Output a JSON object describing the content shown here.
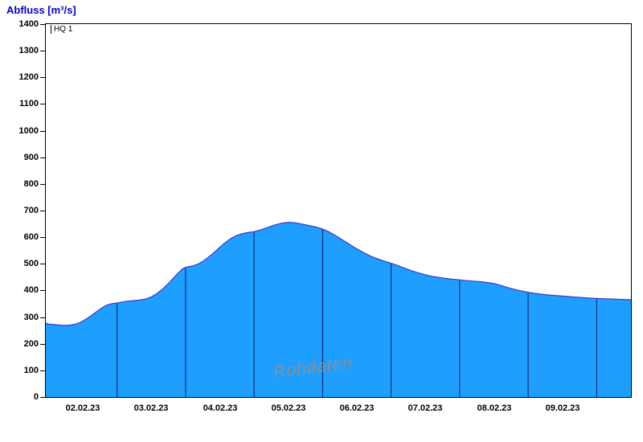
{
  "title": "Abfluss [m³/s]",
  "threshold_label": "HQ 1",
  "watermark": "Rohdaten",
  "colors": {
    "title": "#0000cc",
    "fill": "#1e9eff",
    "outline": "#3a3ad0",
    "boundary": "#0d1a5e",
    "axis": "#000000",
    "watermark": "#8f8f8f"
  },
  "chart_data": {
    "type": "area",
    "title": "Abfluss [m³/s]",
    "ylabel": "Abfluss [m³/s]",
    "xlabel": "",
    "ylim": [
      0,
      1400
    ],
    "ytick_step": 100,
    "y_ticks": [
      0,
      100,
      200,
      300,
      400,
      500,
      600,
      700,
      800,
      900,
      1000,
      1100,
      1200,
      1300,
      1400
    ],
    "x_labels": [
      "02.02.23",
      "03.02.23",
      "04.02.23",
      "05.02.23",
      "06.02.23",
      "07.02.23",
      "08.02.23",
      "09.02.23"
    ],
    "x_domain_days": [
      -0.04,
      8.5
    ],
    "x_label_centers_days": [
      0.5,
      1.5,
      2.5,
      3.5,
      4.5,
      5.5,
      6.5,
      7.5
    ],
    "day_boundaries_days": [
      1,
      2,
      3,
      4,
      5,
      6,
      7,
      8
    ],
    "grid": false,
    "legend": "none",
    "points_days_value": [
      [
        -0.04,
        277
      ],
      [
        0.0,
        274
      ],
      [
        0.08,
        272
      ],
      [
        0.16,
        270
      ],
      [
        0.24,
        269
      ],
      [
        0.32,
        270
      ],
      [
        0.4,
        274
      ],
      [
        0.48,
        282
      ],
      [
        0.55,
        293
      ],
      [
        0.62,
        305
      ],
      [
        0.7,
        320
      ],
      [
        0.78,
        335
      ],
      [
        0.85,
        345
      ],
      [
        0.92,
        350
      ],
      [
        1.0,
        353
      ],
      [
        1.08,
        357
      ],
      [
        1.16,
        360
      ],
      [
        1.25,
        362
      ],
      [
        1.33,
        364
      ],
      [
        1.42,
        368
      ],
      [
        1.5,
        376
      ],
      [
        1.58,
        388
      ],
      [
        1.66,
        404
      ],
      [
        1.74,
        424
      ],
      [
        1.82,
        446
      ],
      [
        1.9,
        468
      ],
      [
        1.96,
        482
      ],
      [
        2.0,
        487
      ],
      [
        2.06,
        490
      ],
      [
        2.12,
        493
      ],
      [
        2.18,
        499
      ],
      [
        2.25,
        509
      ],
      [
        2.33,
        524
      ],
      [
        2.42,
        543
      ],
      [
        2.5,
        562
      ],
      [
        2.58,
        580
      ],
      [
        2.66,
        595
      ],
      [
        2.74,
        606
      ],
      [
        2.82,
        613
      ],
      [
        2.9,
        617
      ],
      [
        3.0,
        621
      ],
      [
        3.1,
        628
      ],
      [
        3.2,
        637
      ],
      [
        3.3,
        646
      ],
      [
        3.4,
        652
      ],
      [
        3.5,
        656
      ],
      [
        3.6,
        654
      ],
      [
        3.7,
        649
      ],
      [
        3.8,
        644
      ],
      [
        3.9,
        638
      ],
      [
        4.0,
        631
      ],
      [
        4.1,
        619
      ],
      [
        4.2,
        604
      ],
      [
        4.3,
        588
      ],
      [
        4.4,
        572
      ],
      [
        4.5,
        556
      ],
      [
        4.6,
        542
      ],
      [
        4.7,
        529
      ],
      [
        4.8,
        519
      ],
      [
        4.9,
        510
      ],
      [
        5.0,
        502
      ],
      [
        5.1,
        493
      ],
      [
        5.2,
        483
      ],
      [
        5.3,
        474
      ],
      [
        5.4,
        466
      ],
      [
        5.5,
        459
      ],
      [
        5.6,
        453
      ],
      [
        5.7,
        449
      ],
      [
        5.8,
        445
      ],
      [
        5.9,
        442
      ],
      [
        6.0,
        440
      ],
      [
        6.1,
        437
      ],
      [
        6.2,
        435
      ],
      [
        6.3,
        433
      ],
      [
        6.4,
        430
      ],
      [
        6.5,
        426
      ],
      [
        6.6,
        419
      ],
      [
        6.7,
        411
      ],
      [
        6.8,
        404
      ],
      [
        6.9,
        398
      ],
      [
        7.0,
        393
      ],
      [
        7.1,
        389
      ],
      [
        7.2,
        386
      ],
      [
        7.3,
        383
      ],
      [
        7.4,
        381
      ],
      [
        7.5,
        379
      ],
      [
        7.6,
        377
      ],
      [
        7.7,
        375
      ],
      [
        7.8,
        373
      ],
      [
        7.9,
        371
      ],
      [
        8.0,
        370
      ],
      [
        8.1,
        369
      ],
      [
        8.2,
        368
      ],
      [
        8.3,
        367
      ],
      [
        8.4,
        366
      ],
      [
        8.5,
        365
      ]
    ]
  }
}
